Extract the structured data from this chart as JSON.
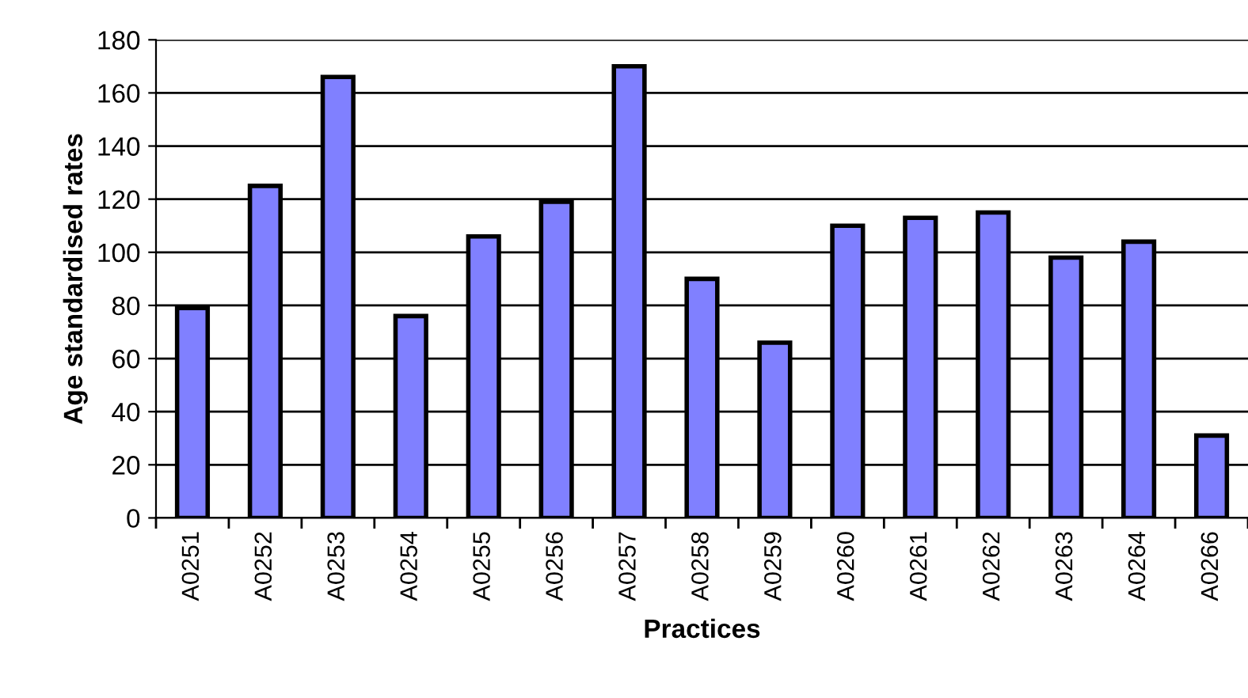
{
  "chart_data": {
    "type": "bar",
    "xlabel": "Practices",
    "ylabel": "Age standardised rates",
    "categories": [
      "A0251",
      "A0252",
      "A0253",
      "A0254",
      "A0255",
      "A0256",
      "A0257",
      "A0258",
      "A0259",
      "A0260",
      "A0261",
      "A0262",
      "A0263",
      "A0264",
      "A0266"
    ],
    "values": [
      79,
      125,
      166,
      76,
      106,
      119,
      170,
      90,
      66,
      110,
      113,
      115,
      98,
      104,
      31
    ],
    "color": "#8080ff",
    "ylim": [
      0,
      180
    ],
    "yticks": [
      0,
      20,
      40,
      60,
      80,
      100,
      120,
      140,
      160,
      180
    ],
    "grid": "y"
  }
}
